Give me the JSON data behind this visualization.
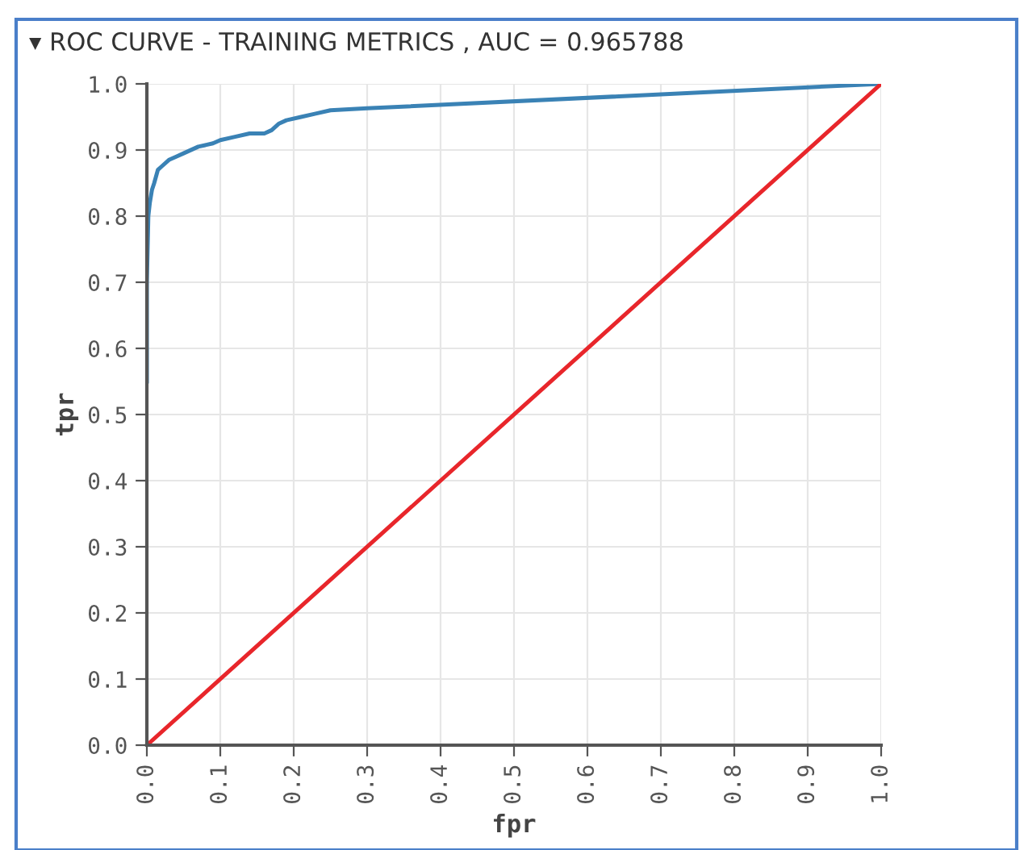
{
  "chart_data": {
    "type": "line",
    "title": "▾ ROC CURVE - TRAINING METRICS , AUC = 0.965788",
    "xlabel": "fpr",
    "ylabel": "tpr",
    "series": [
      {
        "color": "#3a82b5",
        "x": [
          0,
          0,
          0.002,
          0.004,
          0.007,
          0.01,
          0.015,
          0.02,
          0.03,
          0.04,
          0.05,
          0.07,
          0.09,
          0.1,
          0.12,
          0.14,
          0.16,
          0.17,
          0.18,
          0.19,
          0.21,
          0.23,
          0.25,
          0.3,
          1.0
        ],
        "values": [
          0.55,
          0.7,
          0.8,
          0.82,
          0.84,
          0.85,
          0.87,
          0.875,
          0.885,
          0.89,
          0.895,
          0.905,
          0.91,
          0.915,
          0.92,
          0.925,
          0.925,
          0.93,
          0.94,
          0.945,
          0.95,
          0.955,
          0.96,
          0.963,
          1.0
        ]
      },
      {
        "color": "#e8262b",
        "x": [
          0,
          1.0
        ],
        "values": [
          0,
          1.0
        ]
      }
    ],
    "xlim": [
      0,
      1.0
    ],
    "ylim": [
      0,
      1.0
    ],
    "xticks": [
      {
        "value": 0,
        "label": "0.0"
      },
      0.1,
      0.2,
      0.3,
      0.4,
      0.5,
      0.6,
      0.7,
      0.8,
      0.9,
      {
        "value": 1.0,
        "label": "1.0"
      }
    ],
    "yticks": [
      {
        "value": 0,
        "label": "0.0"
      },
      0.1,
      0.2,
      0.3,
      0.4,
      0.5,
      0.6,
      0.7,
      0.8,
      0.9,
      {
        "value": 1.0,
        "label": "1.0"
      }
    ],
    "grid": true
  }
}
